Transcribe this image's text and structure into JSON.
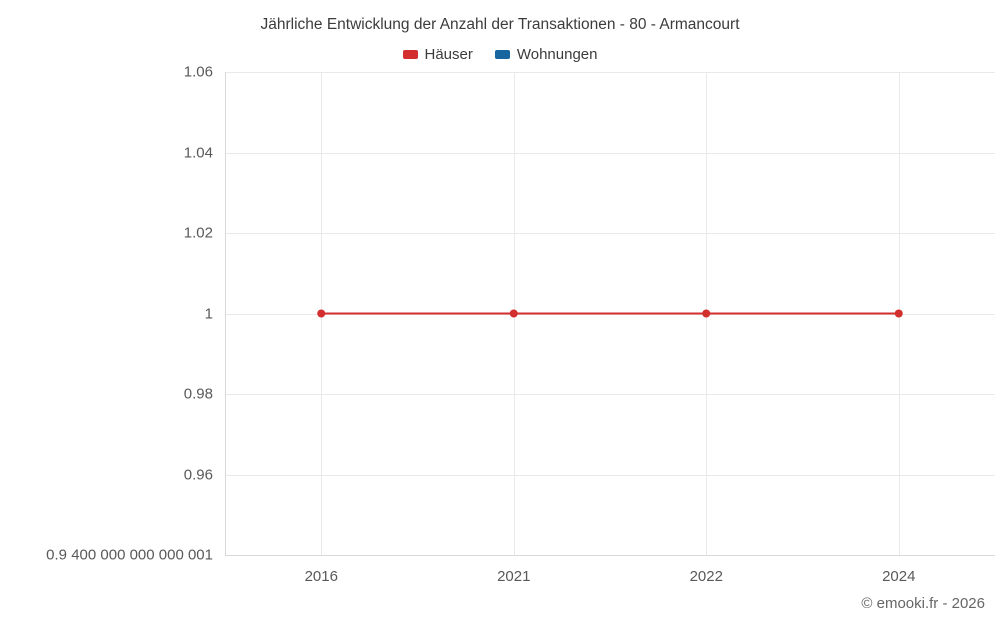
{
  "chart": {
    "title": "Jährliche Entwicklung der Anzahl der Transaktionen - 80 - Armancourt",
    "legend": [
      {
        "label": "Häuser",
        "color": "#d32f2f"
      },
      {
        "label": "Wohnungen",
        "color": "#1766a0"
      }
    ],
    "copyright": "© emooki.fr - 2026"
  },
  "chart_data": {
    "type": "line",
    "title": "Jährliche Entwicklung der Anzahl der Transaktionen - 80 - Armancourt",
    "categories": [
      "2016",
      "2021",
      "2022",
      "2024"
    ],
    "series": [
      {
        "name": "Häuser",
        "color": "#d32f2f",
        "values": [
          1,
          1,
          1,
          1
        ]
      },
      {
        "name": "Wohnungen",
        "color": "#1766a0",
        "values": []
      }
    ],
    "xlabel": "",
    "ylabel": "",
    "ylim": [
      0.94,
      1.06
    ],
    "yticks": [
      {
        "value": 1.06,
        "label": "1.06"
      },
      {
        "value": 1.04,
        "label": "1.04"
      },
      {
        "value": 1.02,
        "label": "1.02"
      },
      {
        "value": 1.0,
        "label": "1"
      },
      {
        "value": 0.98,
        "label": "0.98"
      },
      {
        "value": 0.96,
        "label": "0.96"
      },
      {
        "value": 0.94,
        "label": "0.9 400 000 000 000 001"
      }
    ],
    "grid": true,
    "legend_position": "top",
    "grid_color": "#e9e9e9",
    "axis_color": "#d8d8d8"
  }
}
